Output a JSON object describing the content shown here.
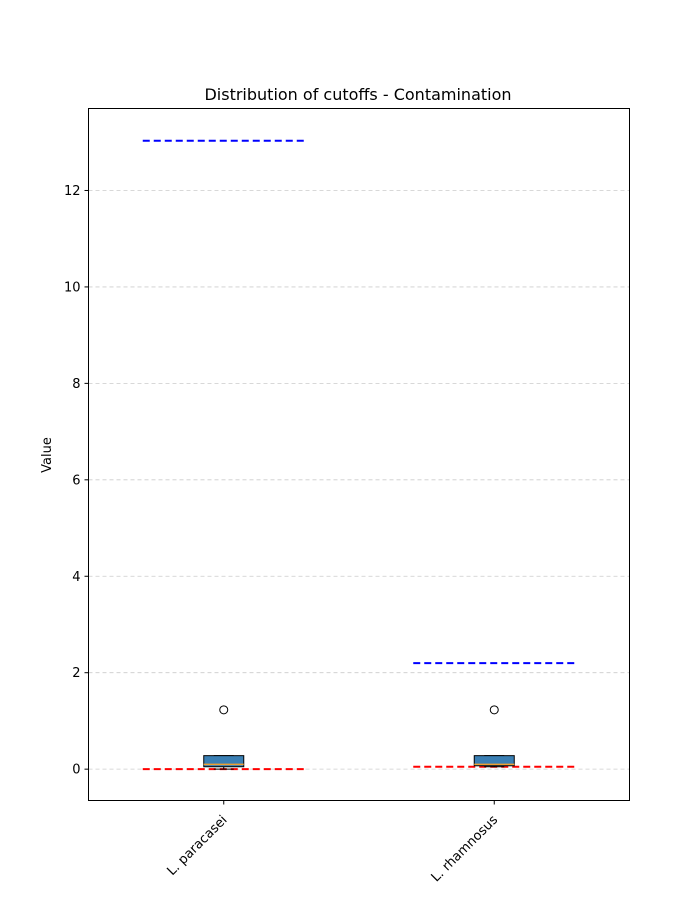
{
  "chart_data": {
    "type": "box",
    "title": "Distribution of cutoffs - Contamination",
    "xlabel": "",
    "ylabel": "Value",
    "ylim": [
      -0.65,
      13.7
    ],
    "yticks": [
      0,
      2,
      4,
      6,
      8,
      10,
      12
    ],
    "grid": "y-dashed",
    "categories": [
      "L. paracasei",
      "L. rhamnosus"
    ],
    "boxes": [
      {
        "category": "L. paracasei",
        "q1": 0.05,
        "median": 0.1,
        "q3": 0.28,
        "whisker_low": 0.0,
        "whisker_high": 0.28,
        "outliers": [
          1.23
        ]
      },
      {
        "category": "L. rhamnosus",
        "q1": 0.07,
        "median": 0.1,
        "q3": 0.28,
        "whisker_low": 0.05,
        "whisker_high": 0.28,
        "outliers": [
          1.23
        ]
      }
    ],
    "reference_lines": [
      {
        "category": "L. paracasei",
        "upper": 13.03,
        "lower": 0.0
      },
      {
        "category": "L. rhamnosus",
        "upper": 2.2,
        "lower": 0.05
      }
    ],
    "colors": {
      "box_fill": "#3a7fb4",
      "median": "#f0a030",
      "upper_line": "#0000ff",
      "lower_line": "#ff0000",
      "grid": "#cccccc"
    }
  }
}
